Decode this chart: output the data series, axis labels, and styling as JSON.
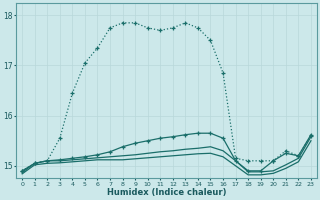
{
  "xlabel": "Humidex (Indice chaleur)",
  "background_color": "#cce8ea",
  "grid_color": "#b8d8da",
  "line_color": "#1a6e6a",
  "xlim": [
    -0.5,
    23.5
  ],
  "ylim": [
    14.75,
    18.25
  ],
  "yticks": [
    15,
    16,
    17,
    18
  ],
  "xticks": [
    0,
    1,
    2,
    3,
    4,
    5,
    6,
    7,
    8,
    9,
    10,
    11,
    12,
    13,
    14,
    15,
    16,
    17,
    18,
    19,
    20,
    21,
    22,
    23
  ],
  "series_main_x": [
    0,
    1,
    2,
    3,
    4,
    5,
    6,
    7,
    8,
    9,
    10,
    11,
    12,
    13,
    14,
    15,
    16,
    17,
    18,
    19,
    20,
    21,
    22,
    23
  ],
  "series_main_y": [
    14.9,
    15.05,
    15.1,
    15.55,
    16.45,
    17.05,
    17.35,
    17.75,
    17.85,
    17.85,
    17.75,
    17.7,
    17.75,
    17.85,
    17.75,
    17.5,
    16.85,
    15.15,
    15.1,
    15.1,
    15.1,
    15.3,
    15.2,
    15.6
  ],
  "series2_x": [
    0,
    1,
    2,
    3,
    4,
    5,
    6,
    7,
    8,
    9,
    10,
    11,
    12,
    13,
    14,
    15,
    16,
    17,
    18,
    19,
    20,
    21,
    22,
    23
  ],
  "series2_y": [
    14.9,
    15.05,
    15.1,
    15.12,
    15.15,
    15.18,
    15.22,
    15.28,
    15.38,
    15.45,
    15.5,
    15.55,
    15.58,
    15.62,
    15.65,
    15.65,
    15.55,
    15.1,
    14.9,
    14.9,
    15.1,
    15.25,
    15.2,
    15.62
  ],
  "series3_x": [
    0,
    1,
    2,
    3,
    4,
    5,
    6,
    7,
    8,
    9,
    10,
    11,
    12,
    13,
    14,
    15,
    16,
    17,
    18,
    19,
    20,
    21,
    22,
    23
  ],
  "series3_y": [
    14.87,
    15.05,
    15.1,
    15.1,
    15.12,
    15.14,
    15.16,
    15.18,
    15.2,
    15.22,
    15.25,
    15.28,
    15.3,
    15.33,
    15.35,
    15.38,
    15.3,
    15.1,
    14.88,
    14.88,
    14.9,
    15.02,
    15.15,
    15.58
  ],
  "series4_x": [
    0,
    1,
    2,
    3,
    4,
    5,
    6,
    7,
    8,
    9,
    10,
    11,
    12,
    13,
    14,
    15,
    16,
    17,
    18,
    19,
    20,
    21,
    22,
    23
  ],
  "series4_y": [
    14.84,
    15.02,
    15.05,
    15.06,
    15.08,
    15.1,
    15.12,
    15.12,
    15.12,
    15.14,
    15.16,
    15.18,
    15.2,
    15.22,
    15.24,
    15.25,
    15.18,
    15.0,
    14.82,
    14.82,
    14.85,
    14.95,
    15.08,
    15.5
  ]
}
